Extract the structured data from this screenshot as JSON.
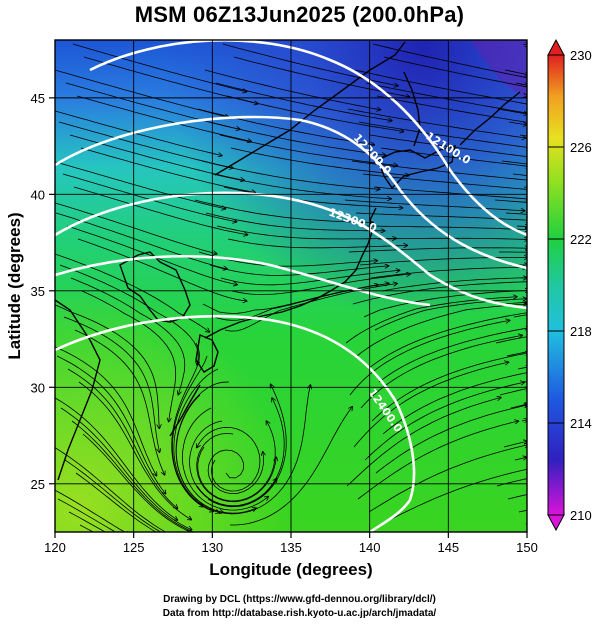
{
  "title": "MSM 06Z13Jun2025 (200.0hPa)",
  "xlabel": "Longitude (degrees)",
  "ylabel": "Latitude  (degrees)",
  "x_ticks": [
    "120",
    "125",
    "130",
    "135",
    "140",
    "145",
    "150"
  ],
  "y_ticks": [
    "25",
    "30",
    "35",
    "40",
    "45"
  ],
  "colorbar_ticks": [
    "230",
    "226",
    "222",
    "218",
    "214",
    "210"
  ],
  "contour_labels": [
    "12100.0",
    "12200.0",
    "12300.0",
    "12400.0"
  ],
  "footer": {
    "line1": "Drawing by DCL (https://www.gfd-dennou.org/library/dcl/)",
    "line2": "Data from http://database.rish.kyoto-u.ac.jp/arch/jmadata/"
  },
  "map": {
    "lon_range": [
      120,
      150
    ],
    "lat_range": [
      22.5,
      48
    ],
    "gridlines": true,
    "colorbar_range": [
      210,
      230
    ],
    "colormap": [
      "#d914d9",
      "#2020c8",
      "#1f6ee6",
      "#20c8d8",
      "#22c8a0",
      "#20d020",
      "#8ce020",
      "#e8e020",
      "#f0a020",
      "#e02020"
    ]
  }
}
